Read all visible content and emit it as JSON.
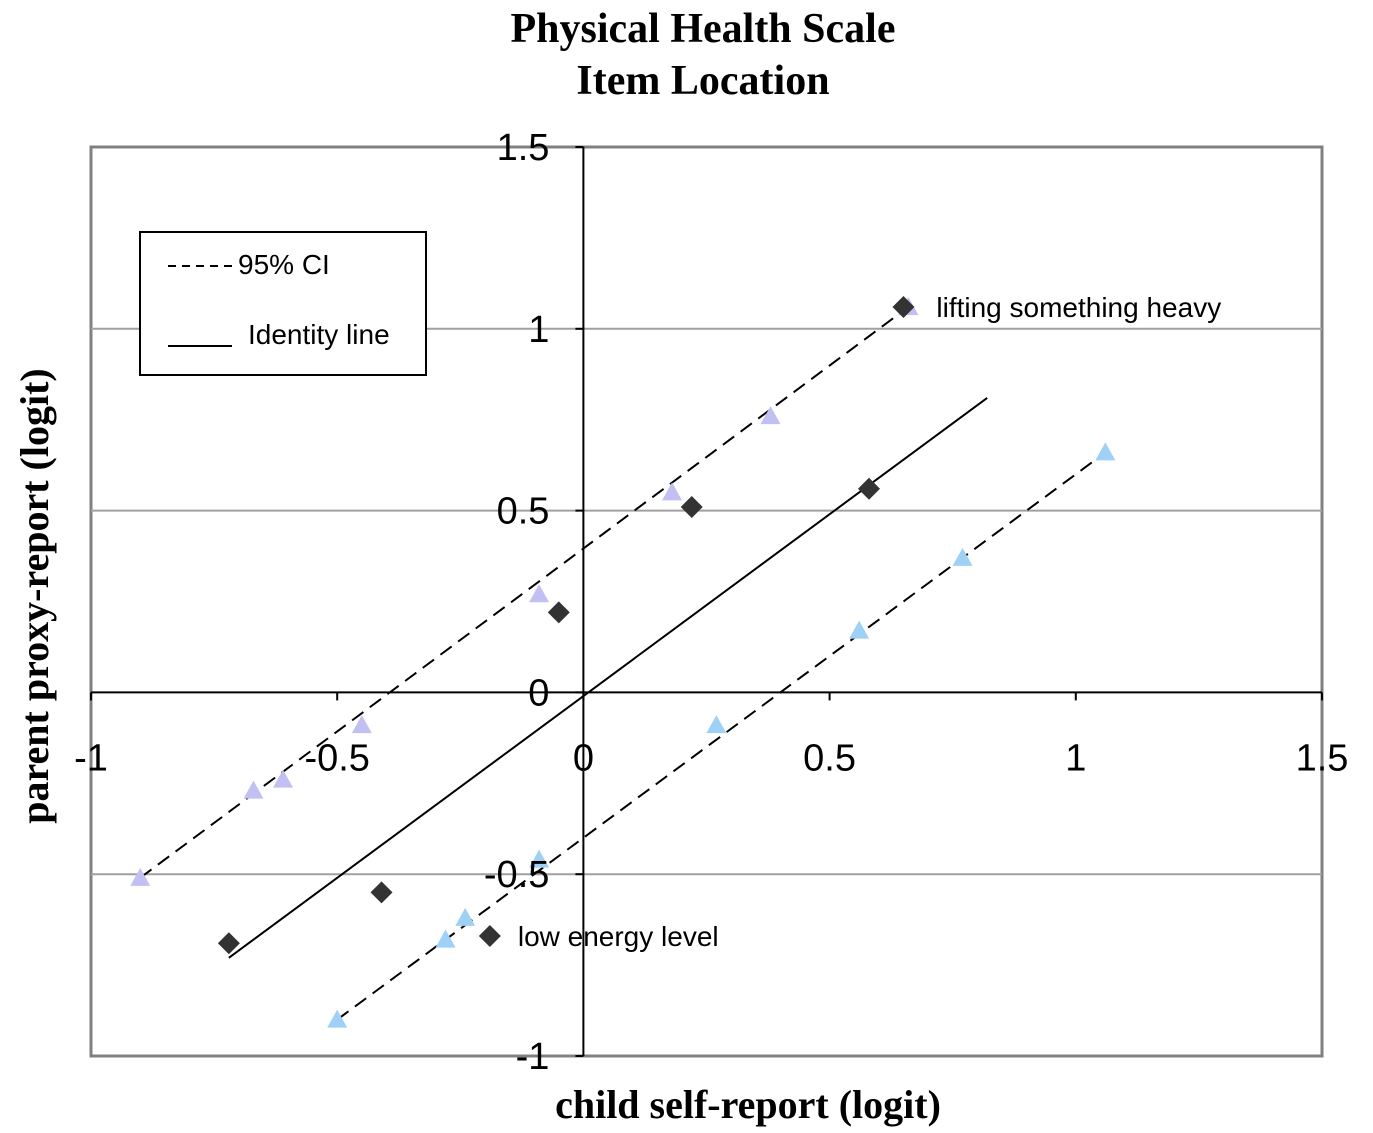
{
  "chart_data": {
    "type": "scatter",
    "title": "Physical Health Scale",
    "subtitle": "Item Location",
    "xlabel": "child self-report (logit)",
    "ylabel": "parent proxy-report (logit)",
    "xlim": [
      -1,
      1.5
    ],
    "ylim": [
      -1,
      1.5
    ],
    "x_ticks": [
      -1,
      -0.5,
      0,
      0.5,
      1,
      1.5
    ],
    "x_tick_labels": [
      "-1",
      "-0.5",
      "0",
      "0.5",
      "1",
      "1.5"
    ],
    "y_ticks": [
      -1,
      -0.5,
      0,
      0.5,
      1,
      1.5
    ],
    "y_tick_labels": [
      "-1",
      "-0.5",
      "0",
      "0.5",
      "1",
      "1.5"
    ],
    "grid": "horizontal",
    "legend_position": "top-left",
    "legend": [
      {
        "label": "95% CI",
        "style": "dashed"
      },
      {
        "label": "Identity line",
        "style": "solid"
      }
    ],
    "lines": [
      {
        "role": "identity",
        "style": "solid",
        "x": [
          -0.72,
          0.82
        ],
        "y": [
          -0.73,
          0.81
        ]
      },
      {
        "role": "upper-ci",
        "style": "dashed",
        "x": [
          -0.9,
          0.66
        ],
        "y": [
          -0.51,
          1.06
        ]
      },
      {
        "role": "lower-ci",
        "style": "dashed",
        "x": [
          -0.5,
          1.06
        ],
        "y": [
          -0.9,
          0.66
        ]
      }
    ],
    "series": [
      {
        "marker": "diamond",
        "color": "#333333",
        "x": [
          -0.72,
          -0.41,
          -0.19,
          -0.05,
          0.22,
          0.58,
          0.65
        ],
        "y": [
          -0.69,
          -0.55,
          -0.67,
          0.22,
          0.51,
          0.56,
          1.06
        ]
      },
      {
        "marker": "triangle",
        "color": "#c2c0f2",
        "x": [
          -0.9,
          -0.67,
          -0.61,
          -0.45,
          -0.09,
          0.18,
          0.38,
          0.66
        ],
        "y": [
          -0.51,
          -0.27,
          -0.24,
          -0.09,
          0.27,
          0.55,
          0.76,
          1.06
        ]
      },
      {
        "marker": "triangle",
        "color": "#9fd0f5",
        "x": [
          -0.5,
          -0.28,
          -0.24,
          -0.09,
          0.27,
          0.56,
          0.77,
          1.06
        ],
        "y": [
          -0.9,
          -0.68,
          -0.62,
          -0.46,
          -0.09,
          0.17,
          0.37,
          0.66
        ]
      }
    ],
    "annotations": [
      {
        "text": "lifting something heavy",
        "x": 0.66,
        "y": 1.06
      },
      {
        "text": "low energy level",
        "x": -0.19,
        "y": -0.67
      }
    ]
  }
}
